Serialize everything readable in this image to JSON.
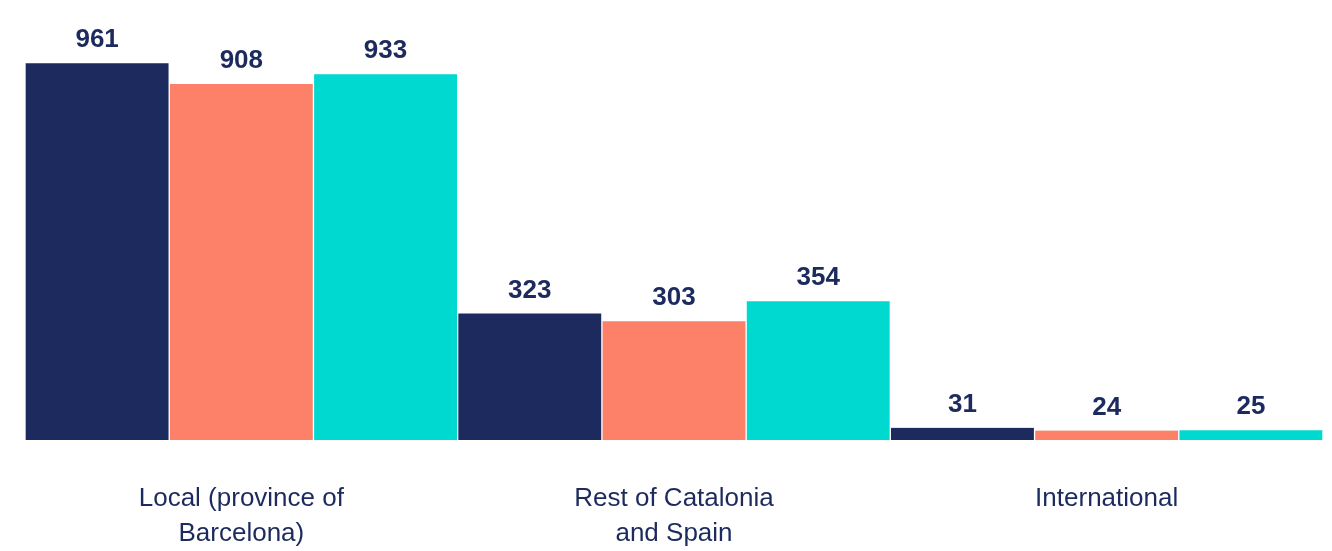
{
  "chart_data": {
    "type": "bar",
    "categories": [
      "Local (province of Barcelona)",
      "Rest of Catalonia and Spain",
      "International"
    ],
    "series": [
      {
        "color": "#1c2a5e",
        "values": [
          961,
          323,
          31
        ]
      },
      {
        "color": "#fd8068",
        "values": [
          908,
          303,
          24
        ]
      },
      {
        "color": "#00d9cf",
        "values": [
          933,
          354,
          25
        ]
      }
    ],
    "data_labels": true,
    "grid": false,
    "legend": false
  }
}
